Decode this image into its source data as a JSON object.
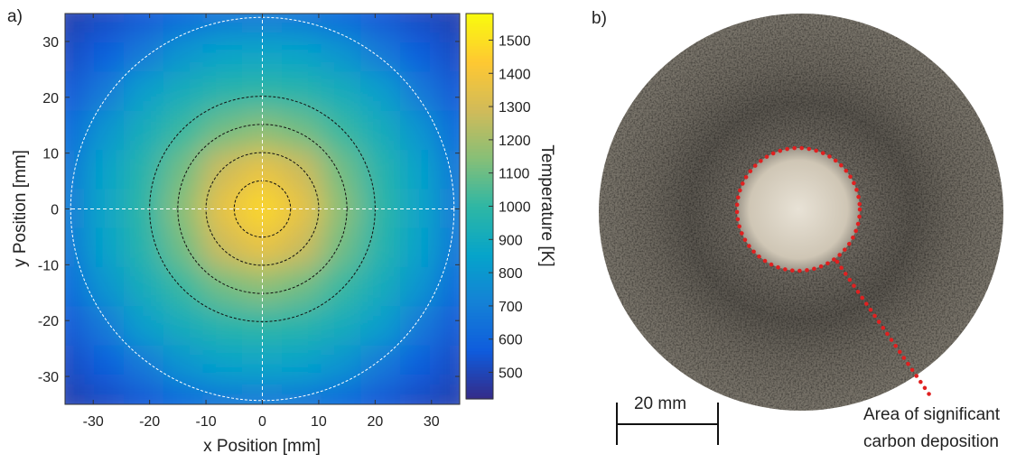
{
  "chart_data": {
    "type": "heatmap",
    "panel_label": "a)",
    "xlabel": "x Position [mm]",
    "ylabel": "y Position [mm]",
    "colorbar_label": "Temperature [K]",
    "colormap": "parula",
    "xlim": [
      -35,
      35
    ],
    "ylim": [
      -35,
      35
    ],
    "xticks": [
      -30,
      -20,
      -10,
      0,
      10,
      20,
      30
    ],
    "yticks": [
      -30,
      -20,
      -10,
      0,
      10,
      20,
      30
    ],
    "clim": [
      420,
      1580
    ],
    "cticks": [
      500,
      600,
      700,
      800,
      900,
      1000,
      1100,
      1200,
      1300,
      1400,
      1500
    ],
    "x": [
      -35,
      -28,
      -21,
      -14,
      -7,
      0,
      7,
      14,
      21,
      28,
      35
    ],
    "y": [
      35,
      28,
      21,
      14,
      7,
      0,
      -7,
      -14,
      -21,
      -28,
      -35
    ],
    "z": [
      [
        484,
        520,
        553,
        614,
        660,
        677,
        660,
        614,
        553,
        520,
        484
      ],
      [
        520,
        571,
        677,
        788,
        850,
        866,
        850,
        788,
        677,
        571,
        520
      ],
      [
        553,
        677,
        835,
        916,
        972,
        992,
        972,
        916,
        835,
        677,
        553
      ],
      [
        614,
        788,
        916,
        1014,
        1106,
        1152,
        1106,
        1014,
        916,
        788,
        614
      ],
      [
        660,
        850,
        972,
        1106,
        1283,
        1364,
        1283,
        1106,
        972,
        850,
        660
      ],
      [
        677,
        866,
        992,
        1152,
        1364,
        1480,
        1364,
        1152,
        992,
        866,
        677
      ],
      [
        660,
        850,
        972,
        1106,
        1283,
        1364,
        1283,
        1106,
        972,
        850,
        660
      ],
      [
        614,
        788,
        916,
        1014,
        1106,
        1152,
        1106,
        1014,
        916,
        788,
        614
      ],
      [
        553,
        677,
        835,
        916,
        972,
        992,
        972,
        916,
        835,
        677,
        553
      ],
      [
        520,
        571,
        677,
        788,
        850,
        866,
        850,
        788,
        677,
        571,
        520
      ],
      [
        484,
        520,
        553,
        614,
        660,
        677,
        660,
        614,
        553,
        520,
        484
      ]
    ],
    "dashed_circle_radii": [
      5,
      10,
      15,
      20
    ],
    "outer_circle_radius": 34
  },
  "photo": {
    "panel_label": "b)",
    "scale_bar": "20 mm",
    "annotation": [
      "Area of significant",
      "carbon deposition"
    ]
  }
}
